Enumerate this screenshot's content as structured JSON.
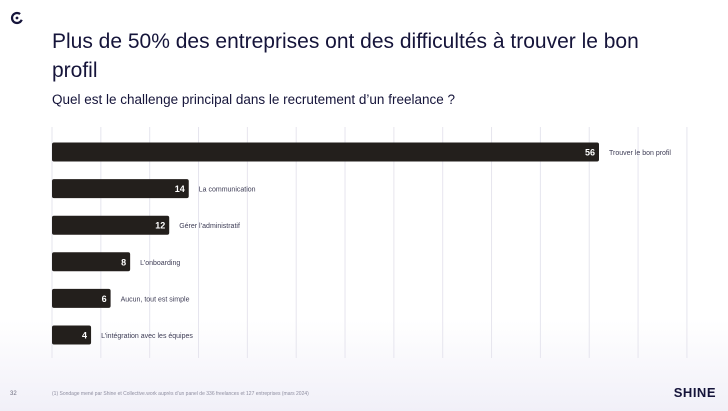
{
  "title": "Plus de 50% des entreprises ont des difficultés à trouver le bon profil",
  "subtitle": "Quel est le challenge principal dans le recrutement d’un freelance ?",
  "footer": {
    "page_number": "32",
    "note": "(1) Sondage mené par Shine et Collective.work auprès d’un panel de 336 freelances et 127 entreprises (mars 2024)",
    "brand": "SHINE"
  },
  "colors": {
    "bar": "#231f1c",
    "text": "#15143a",
    "grid": "#e6e5ee",
    "label": "#3d3c55"
  },
  "chart_data": {
    "type": "bar",
    "orientation": "horizontal",
    "categories": [
      "Trouver le bon profil",
      "La communication",
      "Gérer l’administratif",
      "L’onboarding",
      "Aucun, tout est simple",
      "L’intégration avec les équipes"
    ],
    "values": [
      56,
      14,
      12,
      8,
      6,
      4
    ],
    "xlim": [
      0,
      70
    ],
    "grid": true,
    "value_labels": true
  }
}
